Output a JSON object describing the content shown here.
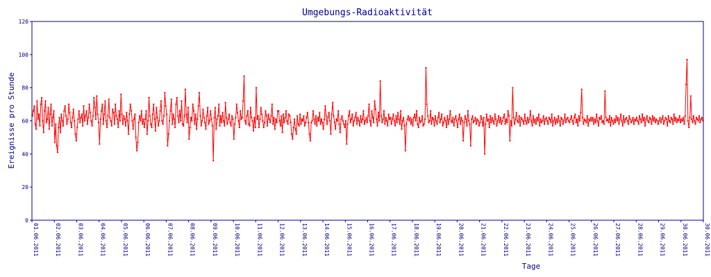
{
  "chart_data": {
    "type": "line",
    "title": "Umgebungs-Radioaktivität",
    "xlabel": "Tage",
    "ylabel": "Ereignisse pro Stunde",
    "ylim": [
      0,
      120
    ],
    "y_ticks": [
      0,
      20,
      40,
      60,
      80,
      100,
      120
    ],
    "x_range": [
      "01.06.2011",
      "30.06.2011"
    ],
    "x_tick_labels": [
      "01.06.2011",
      "02.06.2011",
      "03.06.2011",
      "04.06.2011",
      "05.06.2011",
      "06.06.2011",
      "07.06.2011",
      "08.06.2011",
      "09.06.2011",
      "10.06.2011",
      "11.06.2011",
      "12.06.2011",
      "13.06.2011",
      "14.06.2011",
      "15.06.2011",
      "16.06.2011",
      "17.06.2011",
      "18.06.2011",
      "19.06.2011",
      "20.06.2011",
      "21.06.2011",
      "22.06.2011",
      "23.06.2011",
      "24.06.2011",
      "25.06.2011",
      "26.06.2011",
      "27.06.2011",
      "28.06.2011",
      "29.06.2011",
      "30.06.2011",
      "30.06.2011"
    ],
    "grid": false,
    "series": [
      {
        "color": "#ff0000",
        "marker": "square",
        "daily_values": [
          [
            63,
            66,
            69,
            58,
            55,
            72,
            61,
            64,
            57,
            70,
            74,
            60,
            53,
            66,
            72,
            59,
            61,
            68,
            55,
            64,
            70,
            57,
            62,
            66
          ],
          [
            47,
            58,
            45,
            41,
            56,
            62,
            53,
            64,
            60,
            57,
            66,
            69,
            63,
            58,
            61,
            70,
            65,
            59,
            56,
            62,
            67,
            60,
            52,
            48
          ],
          [
            56,
            61,
            66,
            59,
            62,
            64,
            57,
            69,
            60,
            63,
            66,
            58,
            62,
            70,
            65,
            60,
            57,
            63,
            74,
            68,
            61,
            75,
            64,
            59
          ],
          [
            46,
            61,
            66,
            70,
            58,
            64,
            72,
            60,
            56,
            63,
            73,
            62,
            60,
            57,
            67,
            65,
            58,
            70,
            63,
            61,
            56,
            66,
            60,
            76
          ],
          [
            64,
            58,
            63,
            61,
            57,
            65,
            60,
            52,
            64,
            70,
            66,
            60,
            55,
            61,
            64,
            50,
            42,
            47,
            59,
            63,
            60,
            66,
            58,
            61
          ],
          [
            56,
            61,
            66,
            52,
            60,
            74,
            63,
            58,
            56,
            64,
            70,
            61,
            54,
            68,
            62,
            57,
            60,
            66,
            72,
            60,
            58,
            63,
            77,
            69
          ],
          [
            64,
            45,
            52,
            60,
            66,
            73,
            58,
            64,
            61,
            56,
            70,
            74,
            63,
            59,
            66,
            60,
            72,
            58,
            57,
            63,
            79,
            64,
            59,
            68
          ],
          [
            49,
            56,
            62,
            60,
            70,
            66,
            58,
            64,
            55,
            61,
            69,
            77,
            63,
            57,
            60,
            67,
            62,
            59,
            55,
            63,
            68,
            58,
            60,
            66
          ],
          [
            61,
            57,
            36,
            62,
            68,
            55,
            61,
            63,
            70,
            57,
            63,
            59,
            65,
            60,
            57,
            71,
            62,
            58,
            61,
            64,
            59,
            57,
            63,
            61
          ],
          [
            49,
            58,
            62,
            70,
            65,
            60,
            56,
            66,
            61,
            62,
            72,
            87,
            60,
            58,
            63,
            66,
            58,
            57,
            68,
            62,
            60,
            54,
            62,
            56
          ],
          [
            80,
            61,
            63,
            56,
            61,
            68,
            64,
            60,
            56,
            59,
            66,
            63,
            57,
            64,
            61,
            59,
            63,
            70,
            58,
            62,
            55,
            61,
            59,
            66
          ],
          [
            66,
            60,
            57,
            63,
            53,
            64,
            59,
            62,
            66,
            60,
            58,
            64,
            63,
            59,
            52,
            49,
            56,
            61,
            55,
            52,
            63,
            58,
            57,
            64
          ],
          [
            58,
            61,
            60,
            63,
            57,
            59,
            62,
            65,
            59,
            52,
            48,
            59,
            60,
            66,
            61,
            58,
            63,
            57,
            62,
            60,
            65,
            58,
            61,
            59
          ],
          [
            55,
            61,
            69,
            63,
            58,
            62,
            65,
            60,
            52,
            64,
            71,
            63,
            59,
            55,
            61,
            60,
            66,
            58,
            53,
            61,
            63,
            60,
            58,
            56
          ],
          [
            60,
            46,
            58,
            63,
            66,
            59,
            61,
            64,
            57,
            60,
            62,
            65,
            58,
            62,
            60,
            57,
            63,
            59,
            61,
            66,
            58,
            60,
            62,
            59
          ],
          [
            63,
            70,
            60,
            57,
            66,
            62,
            59,
            72,
            67,
            61,
            57,
            65,
            60,
            84,
            63,
            59,
            61,
            66,
            58,
            62,
            60,
            57,
            64,
            61
          ],
          [
            62,
            58,
            61,
            64,
            60,
            57,
            63,
            59,
            65,
            61,
            58,
            66,
            55,
            60,
            62,
            57,
            42,
            58,
            61,
            63,
            60,
            62,
            58,
            61
          ],
          [
            57,
            62,
            64,
            60,
            66,
            58,
            56,
            62,
            59,
            60,
            63,
            57,
            58,
            61,
            92,
            70,
            63,
            59,
            60,
            66,
            58,
            62,
            61,
            57
          ],
          [
            63,
            60,
            58,
            62,
            65,
            59,
            61,
            64,
            57,
            59,
            62,
            60,
            56,
            63,
            58,
            61,
            66,
            60,
            59,
            62,
            57,
            61,
            63,
            60
          ],
          [
            56,
            61,
            64,
            58,
            62,
            60,
            48,
            59,
            63,
            61,
            57,
            66,
            60,
            58,
            45,
            61,
            63,
            59,
            60,
            62,
            58,
            61,
            60,
            57
          ],
          [
            59,
            63,
            61,
            57,
            62,
            40,
            58,
            64,
            60,
            61,
            56,
            63,
            59,
            62,
            60,
            58,
            64,
            61,
            57,
            60,
            63,
            59,
            62,
            58
          ],
          [
            60,
            62,
            64,
            58,
            61,
            59,
            66,
            63,
            48,
            60,
            57,
            80,
            62,
            58,
            61,
            65,
            60,
            59,
            63,
            57,
            62,
            61,
            60,
            58
          ],
          [
            64,
            60,
            58,
            62,
            59,
            61,
            66,
            60,
            57,
            63,
            59,
            61,
            58,
            62,
            60,
            64,
            57,
            61,
            59,
            60,
            63,
            58,
            61,
            62
          ],
          [
            60,
            58,
            62,
            61,
            59,
            64,
            57,
            60,
            62,
            58,
            61,
            59,
            63,
            60,
            57,
            62,
            61,
            58,
            60,
            64,
            59,
            61,
            62,
            60
          ],
          [
            59,
            61,
            63,
            60,
            58,
            62,
            64,
            59,
            61,
            57,
            63,
            60,
            65,
            79,
            62,
            58,
            61,
            60,
            59,
            63,
            57,
            61,
            60,
            62
          ],
          [
            60,
            62,
            58,
            61,
            59,
            64,
            60,
            57,
            62,
            61,
            63,
            59,
            60,
            58,
            78,
            62,
            60,
            61,
            59,
            63,
            57,
            62,
            60,
            58
          ],
          [
            61,
            59,
            63,
            60,
            62,
            58,
            61,
            64,
            60,
            57,
            63,
            59,
            61,
            62,
            60,
            58,
            63,
            61,
            59,
            60,
            62,
            58,
            61,
            60
          ],
          [
            62,
            60,
            58,
            63,
            61,
            59,
            64,
            60,
            62,
            57,
            61,
            63,
            60,
            59,
            62,
            61,
            58,
            63,
            60,
            62,
            59,
            61,
            60,
            58
          ],
          [
            60,
            62,
            59,
            61,
            63,
            58,
            60,
            62,
            61,
            57,
            63,
            60,
            59,
            62,
            61,
            58,
            64,
            60,
            62,
            59,
            61,
            60,
            63,
            59
          ],
          [
            61,
            60,
            62,
            58,
            63,
            82,
            97,
            60,
            56,
            62,
            75,
            61,
            59,
            63,
            60,
            58,
            62,
            61,
            60,
            63,
            59,
            61,
            62,
            60
          ]
        ]
      }
    ]
  }
}
